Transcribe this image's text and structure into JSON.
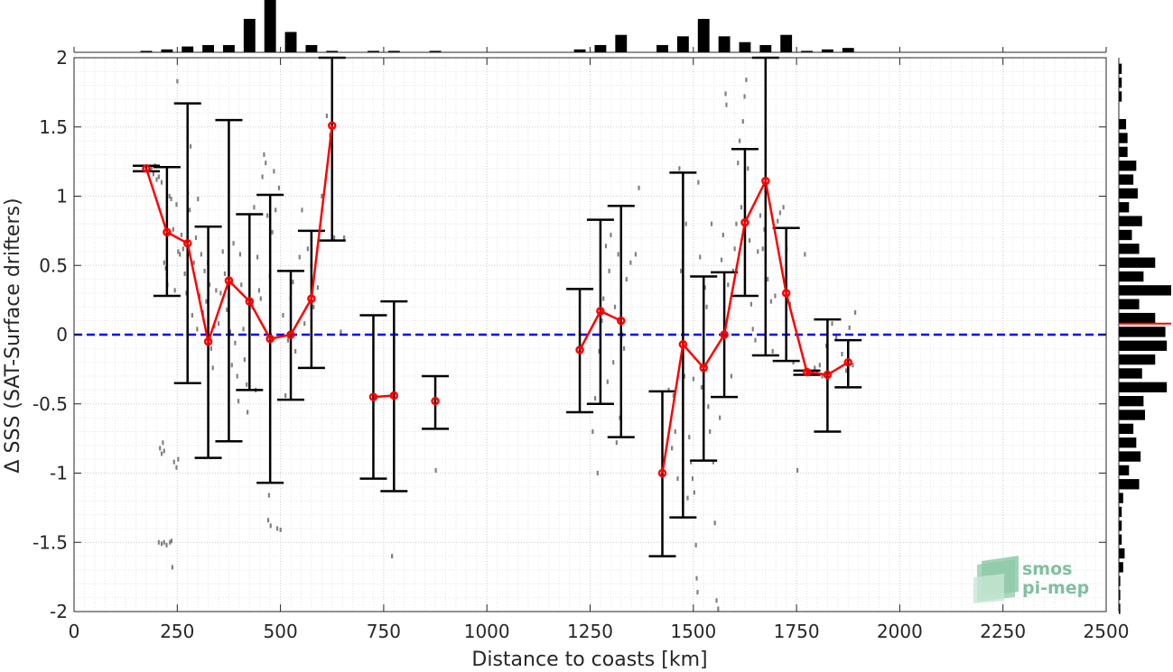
{
  "chart_data": {
    "type": "scatter",
    "title": "",
    "xlabel": "Distance to coasts [km]",
    "ylabel": "Δ SSS (SAT-Surface drifters)",
    "xlim": [
      0,
      2500
    ],
    "ylim": [
      -2,
      2
    ],
    "grid": true,
    "xticks": [
      0,
      250,
      500,
      750,
      1000,
      1250,
      1500,
      1750,
      2000,
      2250,
      2500
    ],
    "yticks": [
      -2,
      -1.5,
      -1,
      -0.5,
      0,
      0.5,
      1,
      1.5,
      2
    ],
    "xtick_labels": [
      "0",
      "250",
      "500",
      "750",
      "1000",
      "1250",
      "1500",
      "1750",
      "2000",
      "2250",
      "2500"
    ],
    "ytick_labels": [
      "-2",
      "-1.5",
      "-1",
      "-0.5",
      "0",
      "0.5",
      "1",
      "1.5",
      "2"
    ],
    "reference_line": {
      "y": 0,
      "color": "#0000ff",
      "style": "dashed"
    },
    "binned_mean": {
      "color": "#ff0000",
      "x": [
        175,
        225,
        275,
        325,
        375,
        425,
        475,
        525,
        575,
        625,
        725,
        775,
        875,
        1225,
        1275,
        1325,
        1425,
        1475,
        1525,
        1575,
        1625,
        1675,
        1725,
        1775,
        1825,
        1875
      ],
      "y": [
        1.2,
        0.74,
        0.66,
        -0.05,
        0.39,
        0.24,
        -0.03,
        0.0,
        0.26,
        1.51,
        -0.45,
        -0.44,
        -0.48,
        -0.11,
        0.17,
        0.1,
        -1.0,
        -0.07,
        -0.24,
        0.0,
        0.81,
        1.11,
        0.3,
        -0.27,
        -0.29,
        -0.2
      ],
      "connected_segments": [
        [
          0,
          9
        ],
        [
          10,
          11
        ],
        [
          12,
          12
        ],
        [
          13,
          15
        ],
        [
          16,
          25
        ]
      ]
    },
    "error_bars": {
      "color": "#000000",
      "x": [
        175,
        225,
        275,
        325,
        375,
        425,
        475,
        525,
        575,
        625,
        725,
        775,
        875,
        1225,
        1275,
        1325,
        1425,
        1475,
        1525,
        1575,
        1625,
        1675,
        1725,
        1775,
        1825,
        1875
      ],
      "upper": [
        1.22,
        1.21,
        1.67,
        0.78,
        1.55,
        0.87,
        1.01,
        0.46,
        0.75,
        2.0,
        0.14,
        0.24,
        -0.3,
        0.33,
        0.83,
        0.93,
        -0.41,
        1.17,
        0.42,
        0.45,
        1.34,
        2.0,
        0.77,
        -0.26,
        0.11,
        -0.04
      ],
      "lower": [
        1.18,
        0.28,
        -0.35,
        -0.89,
        -0.77,
        -0.4,
        -1.07,
        -0.47,
        -0.24,
        0.68,
        -1.04,
        -1.13,
        -0.68,
        -0.56,
        -0.5,
        -0.74,
        -1.6,
        -1.32,
        -0.91,
        -0.45,
        0.28,
        -0.15,
        -0.19,
        -0.29,
        -0.7,
        -0.38
      ]
    },
    "raw_points_color": "#808080",
    "raw_points": [
      [
        185,
        1.19
      ],
      [
        188,
        1.21
      ],
      [
        192,
        1.16
      ],
      [
        196,
        1.22
      ],
      [
        200,
        1.12
      ],
      [
        205,
        1.14
      ],
      [
        212,
        1.1
      ],
      [
        218,
        0.52
      ],
      [
        222,
        0.48
      ],
      [
        226,
        0.36
      ],
      [
        231,
        1.0
      ],
      [
        235,
        0.98
      ],
      [
        240,
        0.76
      ],
      [
        244,
        0.32
      ],
      [
        248,
        0.94
      ],
      [
        250,
        1.83
      ],
      [
        252,
        0.6
      ],
      [
        256,
        0.58
      ],
      [
        260,
        0.72
      ],
      [
        264,
        0.62
      ],
      [
        208,
        -0.82
      ],
      [
        212,
        -0.86
      ],
      [
        215,
        -0.78
      ],
      [
        218,
        -0.84
      ],
      [
        242,
        -0.92
      ],
      [
        248,
        -0.96
      ],
      [
        252,
        -0.9
      ],
      [
        205,
        -1.5
      ],
      [
        212,
        -1.51
      ],
      [
        218,
        -1.5
      ],
      [
        224,
        -1.52
      ],
      [
        232,
        -1.5
      ],
      [
        236,
        -1.49
      ],
      [
        238,
        -1.68
      ],
      [
        268,
        0.44
      ],
      [
        272,
        0.3
      ],
      [
        276,
        1.02
      ],
      [
        280,
        0.9
      ],
      [
        282,
        1.36
      ],
      [
        286,
        0.14
      ],
      [
        290,
        0.52
      ],
      [
        295,
        0.7
      ],
      [
        298,
        0.04
      ],
      [
        300,
        0.98
      ],
      [
        304,
        0.28
      ],
      [
        308,
        0.58
      ],
      [
        312,
        0.16
      ],
      [
        316,
        0.46
      ],
      [
        320,
        0.24
      ],
      [
        324,
        0.52
      ],
      [
        328,
        0.36
      ],
      [
        332,
        -0.1
      ],
      [
        336,
        -0.24
      ],
      [
        340,
        0.06
      ],
      [
        344,
        0.32
      ],
      [
        350,
        0.08
      ],
      [
        355,
        0.3
      ],
      [
        360,
        0.6
      ],
      [
        365,
        0.44
      ],
      [
        370,
        0.18
      ],
      [
        374,
        0.22
      ],
      [
        378,
        0.02
      ],
      [
        382,
        -0.22
      ],
      [
        386,
        0.66
      ],
      [
        390,
        -0.06
      ],
      [
        395,
        -0.3
      ],
      [
        398,
        -0.48
      ],
      [
        402,
        0.58
      ],
      [
        405,
        0.36
      ],
      [
        410,
        0.04
      ],
      [
        413,
        -0.18
      ],
      [
        418,
        -0.36
      ],
      [
        420,
        -0.56
      ],
      [
        425,
        0.46
      ],
      [
        428,
        0.24
      ],
      [
        432,
        0.2
      ],
      [
        436,
        0.92
      ],
      [
        440,
        -0.4
      ],
      [
        444,
        0.56
      ],
      [
        448,
        0.32
      ],
      [
        452,
        0.26
      ],
      [
        456,
        1.14
      ],
      [
        460,
        1.3
      ],
      [
        464,
        1.24
      ],
      [
        468,
        0.86
      ],
      [
        470,
        -1.34
      ],
      [
        472,
        -1.16
      ],
      [
        474,
        0.42
      ],
      [
        476,
        -1.38
      ],
      [
        480,
        0.74
      ],
      [
        484,
        1.18
      ],
      [
        488,
        0.9
      ],
      [
        492,
        -1.4
      ],
      [
        496,
        1.06
      ],
      [
        500,
        -1.41
      ],
      [
        506,
        0.14
      ],
      [
        512,
        -0.44
      ],
      [
        518,
        -0.04
      ],
      [
        524,
        0.26
      ],
      [
        530,
        0.38
      ],
      [
        536,
        -0.12
      ],
      [
        546,
        0.56
      ],
      [
        552,
        0.9
      ],
      [
        558,
        0.08
      ],
      [
        566,
        0.62
      ],
      [
        574,
        0.5
      ],
      [
        580,
        0.2
      ],
      [
        590,
        0.34
      ],
      [
        600,
        1.0
      ],
      [
        612,
        1.58
      ],
      [
        620,
        1.44
      ],
      [
        630,
        0.7
      ],
      [
        646,
        0.02
      ],
      [
        654,
        0.7
      ],
      [
        770,
        -1.6
      ],
      [
        876,
        -0.98
      ],
      [
        1256,
        -0.7
      ],
      [
        1262,
        -0.46
      ],
      [
        1268,
        -1.0
      ],
      [
        1272,
        -0.12
      ],
      [
        1278,
        0.1
      ],
      [
        1282,
        0.26
      ],
      [
        1288,
        0.64
      ],
      [
        1292,
        -0.34
      ],
      [
        1296,
        0.46
      ],
      [
        1300,
        0.72
      ],
      [
        1306,
        -0.2
      ],
      [
        1310,
        0.2
      ],
      [
        1314,
        -0.78
      ],
      [
        1318,
        0.58
      ],
      [
        1322,
        -0.6
      ],
      [
        1328,
        0.0
      ],
      [
        1332,
        -0.1
      ],
      [
        1338,
        0.4
      ],
      [
        1348,
        0.52
      ],
      [
        1360,
        0.58
      ],
      [
        1368,
        1.06
      ],
      [
        1440,
        -0.4
      ],
      [
        1448,
        -0.82
      ],
      [
        1452,
        -0.44
      ],
      [
        1456,
        -0.7
      ],
      [
        1462,
        -1.04
      ],
      [
        1466,
        1.2
      ],
      [
        1470,
        0.46
      ],
      [
        1474,
        0.52
      ],
      [
        1478,
        -0.3
      ],
      [
        1482,
        0.8
      ],
      [
        1486,
        -1.18
      ],
      [
        1490,
        -0.74
      ],
      [
        1494,
        -0.92
      ],
      [
        1498,
        -1.04
      ],
      [
        1500,
        -0.32
      ],
      [
        1502,
        -1.14
      ],
      [
        1506,
        -1.52
      ],
      [
        1508,
        -1.76
      ],
      [
        1510,
        -1.86
      ],
      [
        1512,
        1.1
      ],
      [
        1516,
        0.56
      ],
      [
        1520,
        -0.38
      ],
      [
        1524,
        -0.22
      ],
      [
        1528,
        0.34
      ],
      [
        1532,
        0.2
      ],
      [
        1536,
        -0.52
      ],
      [
        1540,
        -0.7
      ],
      [
        1544,
        0.8
      ],
      [
        1548,
        -0.92
      ],
      [
        1552,
        -1.36
      ],
      [
        1556,
        -1.92
      ],
      [
        1560,
        -1.98
      ],
      [
        1564,
        -0.6
      ],
      [
        1568,
        0.54
      ],
      [
        1572,
        0.72
      ],
      [
        1578,
        1.74
      ],
      [
        1580,
        1.66
      ],
      [
        1584,
        0.36
      ],
      [
        1588,
        0.2
      ],
      [
        1592,
        -0.3
      ],
      [
        1596,
        0.46
      ],
      [
        1600,
        0.62
      ],
      [
        1604,
        0.8
      ],
      [
        1608,
        1.24
      ],
      [
        1612,
        1.4
      ],
      [
        1616,
        0.92
      ],
      [
        1620,
        1.54
      ],
      [
        1624,
        1.72
      ],
      [
        1628,
        1.84
      ],
      [
        1632,
        1.2
      ],
      [
        1636,
        0.68
      ],
      [
        1640,
        0.22
      ],
      [
        1644,
        0.04
      ],
      [
        1650,
        -0.04
      ],
      [
        1656,
        0.6
      ],
      [
        1662,
        0.86
      ],
      [
        1668,
        0.62
      ],
      [
        1672,
        0.76
      ],
      [
        1680,
        0.4
      ],
      [
        1688,
        0.24
      ],
      [
        1692,
        -0.12
      ],
      [
        1698,
        0.28
      ],
      [
        1704,
        0.82
      ],
      [
        1710,
        0.88
      ],
      [
        1718,
        0.92
      ],
      [
        1726,
        0.62
      ],
      [
        1734,
        0.22
      ],
      [
        1742,
        -0.2
      ],
      [
        1752,
        -0.98
      ],
      [
        1770,
        0.58
      ],
      [
        1794,
        -0.24
      ],
      [
        1800,
        -0.28
      ],
      [
        1806,
        -0.22
      ],
      [
        1812,
        -0.3
      ],
      [
        1822,
        -0.08
      ],
      [
        1836,
        0.08
      ],
      [
        1846,
        -0.02
      ],
      [
        1860,
        -0.14
      ],
      [
        1870,
        -0.26
      ],
      [
        1878,
        0.05
      ],
      [
        1886,
        -0.22
      ],
      [
        1892,
        0.16
      ]
    ],
    "top_histogram": {
      "color": "#000000",
      "bin_centers": [
        175,
        225,
        275,
        325,
        375,
        425,
        475,
        525,
        575,
        625,
        725,
        775,
        875,
        1225,
        1275,
        1325,
        1425,
        1475,
        1525,
        1575,
        1625,
        1675,
        1725,
        1775,
        1825,
        1875
      ],
      "counts": [
        1,
        2,
        4,
        5,
        5,
        23,
        36,
        14,
        5,
        1,
        1,
        1,
        1,
        2,
        5,
        12,
        5,
        11,
        23,
        11,
        7,
        5,
        12,
        1,
        2,
        3
      ]
    },
    "right_histogram": {
      "color": "#000000",
      "mean_line": {
        "y": 0.08,
        "color": "#ff0000"
      },
      "bin_centers": [
        1.92,
        1.82,
        1.72,
        1.52,
        1.42,
        1.32,
        1.22,
        1.12,
        1.02,
        0.92,
        0.82,
        0.72,
        0.62,
        0.52,
        0.42,
        0.32,
        0.22,
        0.12,
        0.02,
        -0.08,
        -0.18,
        -0.28,
        -0.38,
        -0.48,
        -0.58,
        -0.68,
        -0.78,
        -0.88,
        -0.98,
        -1.08,
        -1.18,
        -1.28,
        -1.38,
        -1.48,
        -1.58,
        -1.68,
        -1.78,
        -1.88,
        -1.98
      ],
      "counts": [
        2,
        2,
        2,
        5,
        6,
        6,
        12,
        10,
        13,
        7,
        16,
        9,
        14,
        25,
        17,
        36,
        14,
        25,
        32,
        33,
        25,
        16,
        33,
        17,
        18,
        10,
        12,
        15,
        7,
        14,
        3,
        2,
        2,
        2,
        4,
        3,
        1,
        1,
        1
      ]
    }
  },
  "logo": {
    "line1": "smos",
    "line2": "pi-mep"
  }
}
